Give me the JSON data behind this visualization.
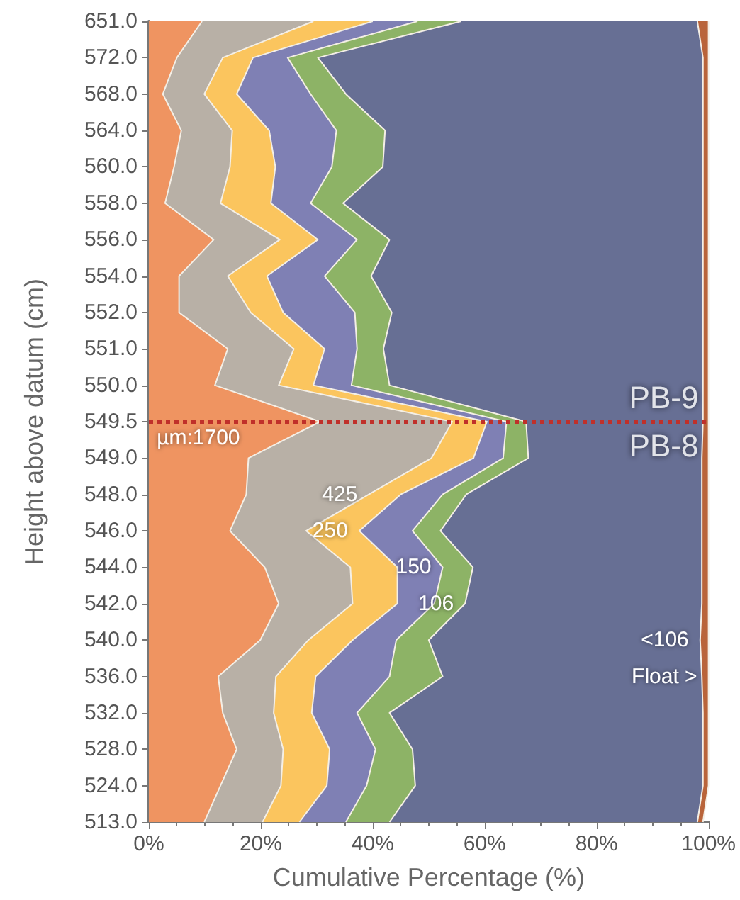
{
  "chart_data": {
    "type": "area",
    "orientation": "horizontal",
    "stacked": true,
    "xlabel": "Cumulative Percentage (%)",
    "ylabel": "Height above datum (cm)",
    "categories": [
      "651.0",
      "572.0",
      "568.0",
      "564.0",
      "560.0",
      "558.0",
      "556.0",
      "554.0",
      "552.0",
      "551.0",
      "550.0",
      "549.5",
      "549.0",
      "548.0",
      "546.0",
      "544.0",
      "542.0",
      "540.0",
      "536.0",
      "532.0",
      "528.0",
      "524.0",
      "513.0"
    ],
    "xlim": [
      0,
      100
    ],
    "xticks": [
      {
        "value": 0,
        "label": "0%"
      },
      {
        "value": 20,
        "label": "20%"
      },
      {
        "value": 40,
        "label": "40%"
      },
      {
        "value": 60,
        "label": "60%"
      },
      {
        "value": 80,
        "label": "80%"
      },
      {
        "value": 100,
        "label": "100%"
      }
    ],
    "grid": false,
    "legend": false,
    "marker": "none",
    "series": [
      {
        "name": "µm:1700",
        "color": "#ef9461",
        "values": [
          9.5,
          5,
          2.5,
          5.8,
          4.5,
          2.9,
          11.6,
          5.4,
          5.4,
          14.1,
          11.8,
          30.6,
          17.8,
          17.4,
          14.5,
          20.7,
          23.2,
          19.9,
          12.4,
          13.2,
          15.7,
          12.8,
          9.9
        ]
      },
      {
        "name": "425",
        "color": "#b8b0a6",
        "values": [
          19.9,
          8.2,
          7.4,
          9.1,
          10,
          9.9,
          11.8,
          8.7,
          12.8,
          11.8,
          11.4,
          23.6,
          32.7,
          21.9,
          13.6,
          15.3,
          13.2,
          8.6,
          10.3,
          9.1,
          8.3,
          10.8,
          10.4
        ]
      },
      {
        "name": "250",
        "color": "#fbc55e",
        "values": [
          10.6,
          5.4,
          5.8,
          6.6,
          8.1,
          9,
          6.8,
          7,
          5.8,
          5.5,
          6.2,
          6.2,
          7.5,
          5.7,
          9.5,
          8.4,
          8,
          7.9,
          7.1,
          6.8,
          8.3,
          8.2,
          6.6
        ]
      },
      {
        "name": "150",
        "color": "#7f80b4",
        "values": [
          8,
          6.2,
          13.2,
          12,
          10.1,
          7.1,
          7,
          10.3,
          12.8,
          5.8,
          6.8,
          3.5,
          5.3,
          7.5,
          9.5,
          8.1,
          6.6,
          7.8,
          13.2,
          8.1,
          8.2,
          7.1,
          8.3
        ]
      },
      {
        "name": "106",
        "color": "#8db366",
        "values": [
          7.8,
          5.4,
          6.3,
          8.7,
          9.1,
          5.8,
          5.8,
          8.3,
          6.6,
          4.7,
          6.8,
          3.5,
          4.5,
          4.2,
          5,
          5.4,
          5.5,
          5.8,
          9.5,
          5.8,
          6.6,
          8.7,
          7.8
        ]
      },
      {
        "name": "<106",
        "color": "#676f94",
        "values": [
          42.2,
          68.8,
          63.8,
          56.8,
          57.2,
          64.3,
          56,
          59.3,
          55.6,
          57.1,
          56,
          31.6,
          31,
          42.1,
          46.7,
          40.9,
          42.3,
          48.5,
          46.3,
          56,
          51.9,
          51.4,
          55
        ]
      },
      {
        "name": "Float >",
        "color": "#b9643a",
        "values": [
          2,
          1,
          1,
          1,
          1,
          1,
          1,
          1,
          1,
          1,
          1,
          1,
          1.2,
          1.2,
          1.2,
          1.2,
          1.2,
          1.5,
          1.2,
          1,
          1,
          1,
          1
        ]
      }
    ],
    "ref_lines": [
      {
        "axis": "y",
        "value": "549.5",
        "color": "#c0302a",
        "line_style": "dotted"
      }
    ],
    "annotations": [
      {
        "text": "PB-9",
        "x": 92,
        "y": "549.5"
      },
      {
        "text": "PB-8",
        "x": 92,
        "y": "549.5"
      }
    ]
  }
}
